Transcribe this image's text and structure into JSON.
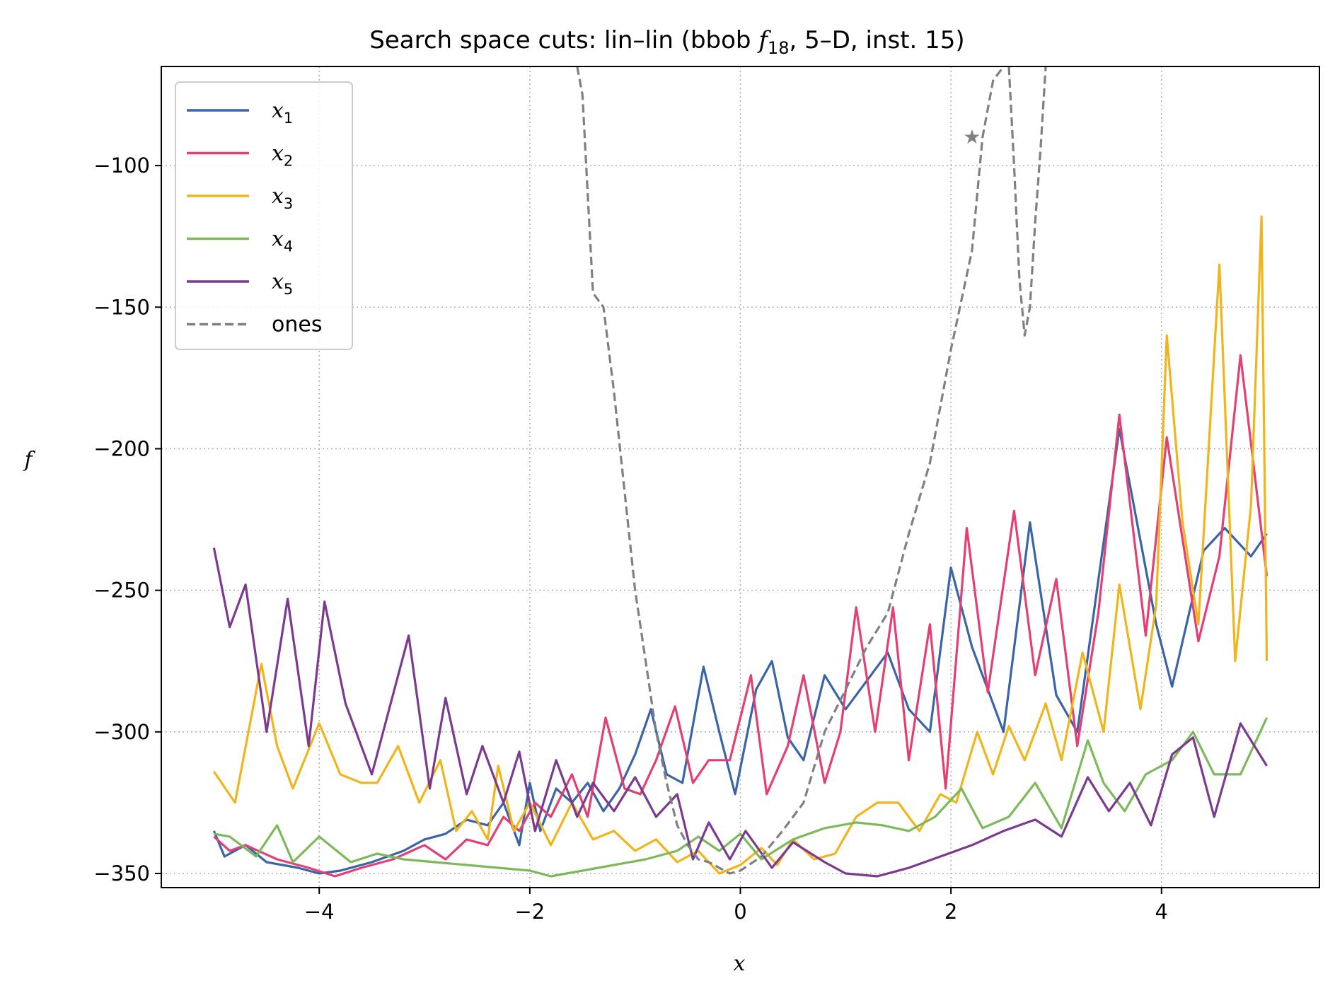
{
  "chart_data": {
    "type": "line",
    "title": "Search space cuts: lin–lin (bbob f18, 5–D, inst. 15)",
    "title_parts": {
      "prefix": "Search space cuts: lin–lin (bbob ",
      "f": "f",
      "sub": "18",
      "suffix": ", 5–D, inst. 15)"
    },
    "xlabel": "x",
    "ylabel": "f",
    "xlim": [
      -5.5,
      5.5
    ],
    "ylim": [
      -355,
      -65
    ],
    "x_ticks": [
      -4,
      -2,
      0,
      2,
      4
    ],
    "x_tick_labels": [
      "−4",
      "−2",
      "0",
      "2",
      "4"
    ],
    "y_ticks": [
      -100,
      -150,
      -200,
      -250,
      -300,
      -350
    ],
    "y_tick_labels": [
      "−100",
      "−150",
      "−200",
      "−250",
      "−300",
      "−350"
    ],
    "grid": true,
    "legend_position": "top-left",
    "series": [
      {
        "name": "x1",
        "label_base": "x",
        "label_sub": "1",
        "color": "#3a64a8",
        "style": "solid",
        "points": [
          [
            -5,
            -335
          ],
          [
            -4.9,
            -344
          ],
          [
            -4.7,
            -340
          ],
          [
            -4.5,
            -346
          ],
          [
            -4.2,
            -348
          ],
          [
            -4.0,
            -350
          ],
          [
            -3.8,
            -349
          ],
          [
            -3.5,
            -346
          ],
          [
            -3.2,
            -342
          ],
          [
            -3.0,
            -338
          ],
          [
            -2.8,
            -336
          ],
          [
            -2.6,
            -331
          ],
          [
            -2.4,
            -333
          ],
          [
            -2.25,
            -325
          ],
          [
            -2.1,
            -340
          ],
          [
            -2.0,
            -318
          ],
          [
            -1.9,
            -335
          ],
          [
            -1.75,
            -320
          ],
          [
            -1.6,
            -325
          ],
          [
            -1.45,
            -318
          ],
          [
            -1.3,
            -328
          ],
          [
            -1.15,
            -320
          ],
          [
            -1.0,
            -308
          ],
          [
            -0.85,
            -292
          ],
          [
            -0.7,
            -315
          ],
          [
            -0.55,
            -318
          ],
          [
            -0.35,
            -277
          ],
          [
            -0.2,
            -300
          ],
          [
            -0.05,
            -322
          ],
          [
            0.15,
            -285
          ],
          [
            0.3,
            -275
          ],
          [
            0.45,
            -302
          ],
          [
            0.6,
            -310
          ],
          [
            0.8,
            -280
          ],
          [
            1.0,
            -292
          ],
          [
            1.2,
            -282
          ],
          [
            1.4,
            -272
          ],
          [
            1.6,
            -292
          ],
          [
            1.8,
            -300
          ],
          [
            2.0,
            -242
          ],
          [
            2.2,
            -270
          ],
          [
            2.5,
            -300
          ],
          [
            2.75,
            -226
          ],
          [
            3.0,
            -287
          ],
          [
            3.2,
            -300
          ],
          [
            3.6,
            -193
          ],
          [
            3.95,
            -262
          ],
          [
            4.1,
            -284
          ],
          [
            4.4,
            -236
          ],
          [
            4.6,
            -228
          ],
          [
            4.85,
            -238
          ],
          [
            5.0,
            -230
          ]
        ]
      },
      {
        "name": "x2",
        "label_base": "x",
        "label_sub": "2",
        "color": "#e33f73",
        "style": "solid",
        "points": [
          [
            -5,
            -337
          ],
          [
            -4.85,
            -342
          ],
          [
            -4.7,
            -340
          ],
          [
            -4.4,
            -345
          ],
          [
            -4.1,
            -348
          ],
          [
            -3.85,
            -351
          ],
          [
            -3.6,
            -348
          ],
          [
            -3.3,
            -345
          ],
          [
            -3.0,
            -340
          ],
          [
            -2.8,
            -345
          ],
          [
            -2.6,
            -338
          ],
          [
            -2.4,
            -340
          ],
          [
            -2.25,
            -330
          ],
          [
            -2.1,
            -335
          ],
          [
            -1.95,
            -325
          ],
          [
            -1.8,
            -330
          ],
          [
            -1.6,
            -315
          ],
          [
            -1.45,
            -330
          ],
          [
            -1.28,
            -295
          ],
          [
            -1.1,
            -320
          ],
          [
            -0.95,
            -322
          ],
          [
            -0.8,
            -310
          ],
          [
            -0.62,
            -291
          ],
          [
            -0.45,
            -318
          ],
          [
            -0.3,
            -310
          ],
          [
            -0.1,
            -310
          ],
          [
            0.1,
            -280
          ],
          [
            0.25,
            -322
          ],
          [
            0.45,
            -305
          ],
          [
            0.6,
            -280
          ],
          [
            0.8,
            -318
          ],
          [
            0.95,
            -300
          ],
          [
            1.1,
            -256
          ],
          [
            1.28,
            -300
          ],
          [
            1.45,
            -256
          ],
          [
            1.6,
            -310
          ],
          [
            1.8,
            -262
          ],
          [
            1.95,
            -320
          ],
          [
            2.15,
            -228
          ],
          [
            2.35,
            -286
          ],
          [
            2.6,
            -222
          ],
          [
            2.8,
            -280
          ],
          [
            3.0,
            -246
          ],
          [
            3.2,
            -305
          ],
          [
            3.4,
            -258
          ],
          [
            3.6,
            -188
          ],
          [
            3.85,
            -266
          ],
          [
            4.05,
            -196
          ],
          [
            4.35,
            -268
          ],
          [
            4.55,
            -238
          ],
          [
            4.75,
            -167
          ],
          [
            5.0,
            -245
          ]
        ]
      },
      {
        "name": "x3",
        "label_base": "x",
        "label_sub": "3",
        "color": "#f0b51a",
        "style": "solid",
        "points": [
          [
            -5,
            -314
          ],
          [
            -4.8,
            -325
          ],
          [
            -4.55,
            -276
          ],
          [
            -4.4,
            -305
          ],
          [
            -4.25,
            -320
          ],
          [
            -4.0,
            -297
          ],
          [
            -3.8,
            -315
          ],
          [
            -3.6,
            -318
          ],
          [
            -3.45,
            -318
          ],
          [
            -3.25,
            -305
          ],
          [
            -3.05,
            -325
          ],
          [
            -2.85,
            -310
          ],
          [
            -2.7,
            -335
          ],
          [
            -2.55,
            -328
          ],
          [
            -2.4,
            -338
          ],
          [
            -2.3,
            -312
          ],
          [
            -2.15,
            -335
          ],
          [
            -2.0,
            -325
          ],
          [
            -1.8,
            -340
          ],
          [
            -1.6,
            -325
          ],
          [
            -1.4,
            -338
          ],
          [
            -1.2,
            -335
          ],
          [
            -1.0,
            -342
          ],
          [
            -0.8,
            -338
          ],
          [
            -0.6,
            -346
          ],
          [
            -0.4,
            -342
          ],
          [
            -0.2,
            -350
          ],
          [
            0.0,
            -347
          ],
          [
            0.2,
            -341
          ],
          [
            0.35,
            -347
          ],
          [
            0.5,
            -338
          ],
          [
            0.7,
            -345
          ],
          [
            0.9,
            -343
          ],
          [
            1.1,
            -330
          ],
          [
            1.3,
            -325
          ],
          [
            1.5,
            -325
          ],
          [
            1.7,
            -335
          ],
          [
            1.9,
            -322
          ],
          [
            2.05,
            -325
          ],
          [
            2.25,
            -300
          ],
          [
            2.4,
            -315
          ],
          [
            2.55,
            -298
          ],
          [
            2.7,
            -310
          ],
          [
            2.9,
            -290
          ],
          [
            3.05,
            -310
          ],
          [
            3.25,
            -272
          ],
          [
            3.45,
            -300
          ],
          [
            3.6,
            -248
          ],
          [
            3.8,
            -292
          ],
          [
            3.95,
            -255
          ],
          [
            4.05,
            -160
          ],
          [
            4.2,
            -226
          ],
          [
            4.35,
            -262
          ],
          [
            4.55,
            -135
          ],
          [
            4.7,
            -275
          ],
          [
            4.85,
            -220
          ],
          [
            4.95,
            -118
          ],
          [
            5.0,
            -275
          ]
        ]
      },
      {
        "name": "x4",
        "label_base": "x",
        "label_sub": "4",
        "color": "#7cb95a",
        "style": "solid",
        "points": [
          [
            -5,
            -336
          ],
          [
            -4.85,
            -337
          ],
          [
            -4.6,
            -344
          ],
          [
            -4.4,
            -333
          ],
          [
            -4.25,
            -346
          ],
          [
            -4.0,
            -337
          ],
          [
            -3.7,
            -346
          ],
          [
            -3.45,
            -343
          ],
          [
            -3.2,
            -345
          ],
          [
            -2.9,
            -346
          ],
          [
            -2.6,
            -347
          ],
          [
            -2.3,
            -348
          ],
          [
            -2.0,
            -349
          ],
          [
            -1.8,
            -351
          ],
          [
            -1.5,
            -349
          ],
          [
            -1.2,
            -347
          ],
          [
            -0.9,
            -345
          ],
          [
            -0.6,
            -342
          ],
          [
            -0.4,
            -337
          ],
          [
            -0.2,
            -342
          ],
          [
            0.0,
            -336
          ],
          [
            0.2,
            -345
          ],
          [
            0.5,
            -338
          ],
          [
            0.8,
            -334
          ],
          [
            1.1,
            -332
          ],
          [
            1.35,
            -333
          ],
          [
            1.6,
            -335
          ],
          [
            1.85,
            -330
          ],
          [
            2.1,
            -320
          ],
          [
            2.3,
            -334
          ],
          [
            2.55,
            -330
          ],
          [
            2.8,
            -318
          ],
          [
            3.05,
            -334
          ],
          [
            3.3,
            -303
          ],
          [
            3.45,
            -318
          ],
          [
            3.65,
            -328
          ],
          [
            3.85,
            -315
          ],
          [
            4.1,
            -310
          ],
          [
            4.3,
            -300
          ],
          [
            4.5,
            -315
          ],
          [
            4.75,
            -315
          ],
          [
            5.0,
            -295
          ]
        ]
      },
      {
        "name": "x5",
        "label_base": "x",
        "label_sub": "5",
        "color": "#7b3a8f",
        "style": "solid",
        "points": [
          [
            -5,
            -235
          ],
          [
            -4.85,
            -263
          ],
          [
            -4.7,
            -248
          ],
          [
            -4.5,
            -300
          ],
          [
            -4.3,
            -253
          ],
          [
            -4.1,
            -305
          ],
          [
            -3.95,
            -254
          ],
          [
            -3.75,
            -290
          ],
          [
            -3.5,
            -315
          ],
          [
            -3.15,
            -266
          ],
          [
            -2.95,
            -320
          ],
          [
            -2.8,
            -288
          ],
          [
            -2.6,
            -322
          ],
          [
            -2.45,
            -305
          ],
          [
            -2.25,
            -325
          ],
          [
            -2.1,
            -307
          ],
          [
            -1.95,
            -335
          ],
          [
            -1.75,
            -310
          ],
          [
            -1.55,
            -330
          ],
          [
            -1.4,
            -318
          ],
          [
            -1.2,
            -328
          ],
          [
            -1.0,
            -316
          ],
          [
            -0.8,
            -330
          ],
          [
            -0.6,
            -322
          ],
          [
            -0.45,
            -345
          ],
          [
            -0.3,
            -332
          ],
          [
            -0.1,
            -345
          ],
          [
            0.05,
            -335
          ],
          [
            0.3,
            -348
          ],
          [
            0.5,
            -339
          ],
          [
            0.8,
            -346
          ],
          [
            1.0,
            -350
          ],
          [
            1.3,
            -351
          ],
          [
            1.6,
            -348
          ],
          [
            1.9,
            -344
          ],
          [
            2.2,
            -340
          ],
          [
            2.5,
            -335
          ],
          [
            2.8,
            -331
          ],
          [
            3.05,
            -337
          ],
          [
            3.3,
            -316
          ],
          [
            3.5,
            -328
          ],
          [
            3.7,
            -318
          ],
          [
            3.9,
            -333
          ],
          [
            4.1,
            -308
          ],
          [
            4.3,
            -302
          ],
          [
            4.5,
            -330
          ],
          [
            4.75,
            -297
          ],
          [
            5.0,
            -312
          ]
        ]
      },
      {
        "name": "ones",
        "label_base": "ones",
        "label_sub": "",
        "color": "#808080",
        "style": "dashed",
        "points": [
          [
            -1.55,
            -65
          ],
          [
            -1.5,
            -75
          ],
          [
            -1.45,
            -110
          ],
          [
            -1.4,
            -145
          ],
          [
            -1.3,
            -150
          ],
          [
            -1.2,
            -180
          ],
          [
            -1.1,
            -215
          ],
          [
            -1.0,
            -250
          ],
          [
            -0.9,
            -275
          ],
          [
            -0.8,
            -300
          ],
          [
            -0.7,
            -318
          ],
          [
            -0.6,
            -333
          ],
          [
            -0.5,
            -340
          ],
          [
            -0.4,
            -345
          ],
          [
            -0.3,
            -346
          ],
          [
            -0.2,
            -348
          ],
          [
            -0.1,
            -350
          ],
          [
            0.0,
            -349
          ],
          [
            0.2,
            -344
          ],
          [
            0.4,
            -335
          ],
          [
            0.6,
            -325
          ],
          [
            0.8,
            -300
          ],
          [
            1.0,
            -285
          ],
          [
            1.2,
            -270
          ],
          [
            1.4,
            -258
          ],
          [
            1.6,
            -230
          ],
          [
            1.8,
            -205
          ],
          [
            2.0,
            -165
          ],
          [
            2.2,
            -130
          ],
          [
            2.3,
            -90
          ],
          [
            2.4,
            -70
          ],
          [
            2.5,
            -65
          ]
        ]
      },
      {
        "name": "",
        "label_base": "",
        "label_sub": "",
        "color": "#808080",
        "style": "dashed",
        "points": [
          [
            2.55,
            -65
          ],
          [
            2.6,
            -100
          ],
          [
            2.65,
            -140
          ],
          [
            2.7,
            -160
          ],
          [
            2.75,
            -150
          ],
          [
            2.8,
            -120
          ],
          [
            2.85,
            -95
          ],
          [
            2.9,
            -65
          ]
        ]
      }
    ],
    "marker": {
      "x": 2.2,
      "y": -90,
      "symbol": "star",
      "color": "#808080"
    }
  }
}
